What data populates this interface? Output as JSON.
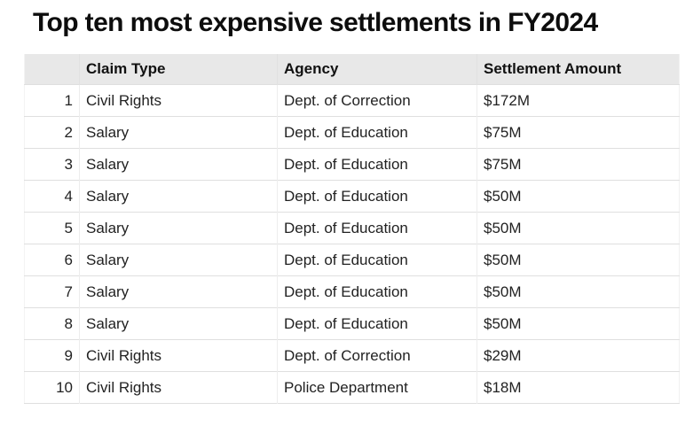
{
  "title": "Top ten most expensive settlements in FY2024",
  "colors": {
    "background": "#ffffff",
    "header_bg": "#e8e8e8",
    "row_border": "#dfdfdf",
    "column_border": "#ededed",
    "title_text": "#0d0d0d",
    "body_text": "#222222"
  },
  "chart_data": {
    "type": "table",
    "title": "Top ten most expensive settlements in FY2024",
    "columns": [
      "",
      "Claim Type",
      "Agency",
      "Settlement Amount"
    ],
    "rows": [
      [
        "1",
        "Civil Rights",
        "Dept. of Correction",
        "$172M"
      ],
      [
        "2",
        "Salary",
        "Dept. of Education",
        "$75M"
      ],
      [
        "3",
        "Salary",
        "Dept. of Education",
        "$75M"
      ],
      [
        "4",
        "Salary",
        "Dept. of Education",
        "$50M"
      ],
      [
        "5",
        "Salary",
        "Dept. of Education",
        "$50M"
      ],
      [
        "6",
        "Salary",
        "Dept. of Education",
        "$50M"
      ],
      [
        "7",
        "Salary",
        "Dept. of Education",
        "$50M"
      ],
      [
        "8",
        "Salary",
        "Dept. of Education",
        "$50M"
      ],
      [
        "9",
        "Civil Rights",
        "Dept. of Correction",
        "$29M"
      ],
      [
        "10",
        "Civil Rights",
        "Police Department",
        "$18M"
      ]
    ],
    "settlement_amounts_musd": [
      172,
      75,
      75,
      50,
      50,
      50,
      50,
      50,
      29,
      18
    ]
  }
}
